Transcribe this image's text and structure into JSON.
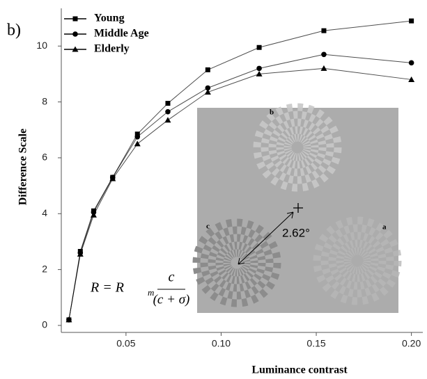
{
  "chart_data": {
    "type": "line",
    "panel_label": "b)",
    "y_label": "Difference Scale",
    "x_label": "Luminance contrast",
    "x": [
      0.02,
      0.026,
      0.033,
      0.043,
      0.056,
      0.072,
      0.093,
      0.12,
      0.154,
      0.2
    ],
    "series": [
      {
        "name": "Young",
        "color": "#000000",
        "marker": "square",
        "values": [
          0.2,
          2.65,
          4.1,
          5.3,
          6.85,
          7.95,
          9.15,
          9.95,
          10.55,
          10.9
        ]
      },
      {
        "name": "Middle Age",
        "color": "#000000",
        "marker": "circle",
        "values": [
          0.2,
          2.6,
          4.05,
          5.3,
          6.75,
          7.65,
          8.5,
          9.2,
          9.7,
          9.4
        ]
      },
      {
        "name": "Elderly",
        "color": "#000000",
        "marker": "triangle",
        "values": [
          0.2,
          2.55,
          3.95,
          5.25,
          6.5,
          7.35,
          8.35,
          9.0,
          9.2,
          8.8
        ]
      }
    ],
    "xlim": [
      0.016,
      0.206
    ],
    "ylim": [
      -0.25,
      11.35
    ],
    "xticks": [
      0.05,
      {
        "value": 0.1,
        "label": "0.10"
      },
      0.15,
      {
        "value": 0.2,
        "label": "0.20"
      }
    ],
    "yticks": [
      0,
      2,
      4,
      6,
      8,
      10
    ],
    "legend": "upper-left",
    "inset": {
      "labels": [
        "b",
        "c",
        "a"
      ],
      "angle": "2.62°"
    },
    "formula": {
      "lhs": "R = R",
      "sub": "m",
      "numerator": "c",
      "denominator": "(c + σ)"
    }
  }
}
